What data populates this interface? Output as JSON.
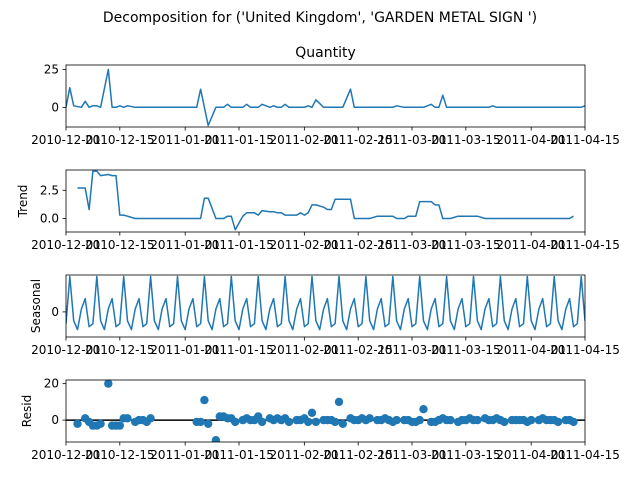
{
  "figure_title": "Decomposition for ('United Kingdom', 'GARDEN METAL SIGN ')",
  "x_tick_labels": [
    "2010-12-01",
    "2010-12-15",
    "2011-01-01",
    "2011-01-15",
    "2011-02-01",
    "2011-02-15",
    "2011-03-01",
    "2011-03-15",
    "2011-04-01",
    "2011-04-15"
  ],
  "line_color": "#1f77b4",
  "chart_data": [
    {
      "type": "line",
      "title": "Quantity",
      "ylabel": "",
      "xlim": [
        "2010-12-01",
        "2011-04-15"
      ],
      "ylim": [
        -13,
        28
      ],
      "yticks": [
        0,
        25
      ],
      "grid": false,
      "series": [
        {
          "x": [
            "2010-12-01",
            "2010-12-02",
            "2010-12-03",
            "2010-12-05",
            "2010-12-06",
            "2010-12-07",
            "2010-12-08",
            "2010-12-09",
            "2010-12-10",
            "2010-12-12",
            "2010-12-13",
            "2010-12-14",
            "2010-12-15",
            "2010-12-16",
            "2010-12-17",
            "2010-12-19",
            "2010-12-20",
            "2010-12-21",
            "2010-12-22",
            "2010-12-23",
            "2011-01-04",
            "2011-01-05",
            "2011-01-06",
            "2011-01-07",
            "2011-01-09",
            "2011-01-10",
            "2011-01-11",
            "2011-01-12",
            "2011-01-13",
            "2011-01-14",
            "2011-01-16",
            "2011-01-17",
            "2011-01-18",
            "2011-01-19",
            "2011-01-20",
            "2011-01-21",
            "2011-01-23",
            "2011-01-24",
            "2011-01-25",
            "2011-01-26",
            "2011-01-27",
            "2011-01-28",
            "2011-01-30",
            "2011-01-31",
            "2011-02-01",
            "2011-02-02",
            "2011-02-03",
            "2011-02-04",
            "2011-02-06",
            "2011-02-07",
            "2011-02-08",
            "2011-02-09",
            "2011-02-10",
            "2011-02-11",
            "2011-02-13",
            "2011-02-14",
            "2011-02-15",
            "2011-02-16",
            "2011-02-17",
            "2011-02-18",
            "2011-02-20",
            "2011-02-21",
            "2011-02-22",
            "2011-02-23",
            "2011-02-24",
            "2011-02-25",
            "2011-02-27",
            "2011-02-28",
            "2011-03-01",
            "2011-03-02",
            "2011-03-03",
            "2011-03-04",
            "2011-03-06",
            "2011-03-07",
            "2011-03-08",
            "2011-03-09",
            "2011-03-10",
            "2011-03-11",
            "2011-03-13",
            "2011-03-14",
            "2011-03-15",
            "2011-03-16",
            "2011-03-17",
            "2011-03-18",
            "2011-03-20",
            "2011-03-21",
            "2011-03-22",
            "2011-03-23",
            "2011-03-24",
            "2011-03-25",
            "2011-03-27",
            "2011-03-28",
            "2011-03-29",
            "2011-03-30",
            "2011-03-31",
            "2011-04-01",
            "2011-04-03",
            "2011-04-04",
            "2011-04-05",
            "2011-04-06",
            "2011-04-07",
            "2011-04-08",
            "2011-04-10",
            "2011-04-11",
            "2011-04-12",
            "2011-04-13",
            "2011-04-14",
            "2011-04-15"
          ],
          "y": [
            0,
            13,
            1,
            0,
            4,
            0,
            1,
            1,
            0,
            25,
            0,
            0,
            1,
            0,
            1,
            0,
            0,
            0,
            0,
            0,
            0,
            12,
            0,
            -12,
            0,
            0,
            0,
            2,
            0,
            0,
            0,
            2,
            0,
            0,
            0,
            2,
            0,
            1,
            0,
            0,
            2,
            0,
            0,
            0,
            0,
            1,
            0,
            5,
            0,
            0,
            0,
            0,
            0,
            0,
            12,
            0,
            0,
            0,
            0,
            0,
            0,
            0,
            0,
            0,
            0,
            1,
            0,
            0,
            0,
            0,
            0,
            0,
            2,
            0,
            0,
            8,
            0,
            0,
            0,
            0,
            0,
            0,
            0,
            0,
            0,
            0,
            1,
            0,
            0,
            0,
            0,
            0,
            0,
            0,
            0,
            0,
            0,
            0,
            0,
            0,
            0,
            0,
            0,
            0,
            0,
            0,
            0,
            1
          ]
        }
      ]
    },
    {
      "type": "line",
      "title": "",
      "ylabel": "Trend",
      "xlim": [
        "2010-12-01",
        "2011-04-15"
      ],
      "ylim": [
        -1.2,
        4.3
      ],
      "yticks": [
        0.0,
        2.5
      ],
      "grid": false,
      "series": [
        {
          "x": [
            "2010-12-04",
            "2010-12-06",
            "2010-12-07",
            "2010-12-08",
            "2010-12-09",
            "2010-12-10",
            "2010-12-12",
            "2010-12-13",
            "2010-12-14",
            "2010-12-15",
            "2010-12-16",
            "2010-12-17",
            "2010-12-19",
            "2010-12-20",
            "2010-12-21",
            "2010-12-22",
            "2010-12-23",
            "2011-01-04",
            "2011-01-05",
            "2011-01-06",
            "2011-01-07",
            "2011-01-09",
            "2011-01-10",
            "2011-01-11",
            "2011-01-12",
            "2011-01-13",
            "2011-01-14",
            "2011-01-16",
            "2011-01-17",
            "2011-01-18",
            "2011-01-19",
            "2011-01-20",
            "2011-01-21",
            "2011-01-23",
            "2011-01-24",
            "2011-01-25",
            "2011-01-26",
            "2011-01-27",
            "2011-01-28",
            "2011-01-30",
            "2011-01-31",
            "2011-02-01",
            "2011-02-02",
            "2011-02-03",
            "2011-02-04",
            "2011-02-06",
            "2011-02-07",
            "2011-02-08",
            "2011-02-09",
            "2011-02-10",
            "2011-02-11",
            "2011-02-13",
            "2011-02-14",
            "2011-02-15",
            "2011-02-16",
            "2011-02-17",
            "2011-02-18",
            "2011-02-20",
            "2011-02-21",
            "2011-02-22",
            "2011-02-23",
            "2011-02-24",
            "2011-02-25",
            "2011-02-27",
            "2011-02-28",
            "2011-03-01",
            "2011-03-02",
            "2011-03-03",
            "2011-03-04",
            "2011-03-06",
            "2011-03-07",
            "2011-03-08",
            "2011-03-09",
            "2011-03-10",
            "2011-03-11",
            "2011-03-13",
            "2011-03-14",
            "2011-03-15",
            "2011-03-16",
            "2011-03-17",
            "2011-03-18",
            "2011-03-20",
            "2011-03-21",
            "2011-03-22",
            "2011-03-23",
            "2011-03-24",
            "2011-03-25",
            "2011-03-27",
            "2011-03-28",
            "2011-03-29",
            "2011-03-30",
            "2011-03-31",
            "2011-04-01",
            "2011-04-03",
            "2011-04-04",
            "2011-04-05",
            "2011-04-06",
            "2011-04-07",
            "2011-04-08",
            "2011-04-10",
            "2011-04-11",
            "2011-04-12"
          ],
          "y": [
            2.7,
            2.7,
            0.8,
            4.2,
            4.2,
            3.8,
            3.9,
            3.8,
            3.8,
            0.3,
            0.3,
            0.2,
            0.0,
            0.0,
            0.0,
            0.0,
            0.0,
            0.0,
            0.0,
            1.8,
            1.8,
            0.0,
            0.0,
            0.0,
            0.2,
            0.2,
            -1.0,
            0.2,
            0.5,
            0.5,
            0.5,
            0.3,
            0.7,
            0.6,
            0.6,
            0.5,
            0.5,
            0.3,
            0.3,
            0.3,
            0.5,
            0.3,
            0.5,
            1.2,
            1.2,
            1.0,
            0.8,
            0.8,
            1.7,
            1.7,
            1.7,
            1.7,
            0.0,
            0.0,
            0.0,
            0.0,
            0.0,
            0.2,
            0.2,
            0.2,
            0.2,
            0.2,
            0.0,
            0.0,
            0.2,
            0.2,
            0.2,
            1.5,
            1.5,
            1.5,
            1.2,
            1.2,
            0.0,
            0.0,
            0.0,
            0.2,
            0.2,
            0.2,
            0.2,
            0.2,
            0.2,
            0.0,
            0.0,
            0.0,
            0.0,
            0.0,
            0.0,
            0.0,
            0.0,
            0.0,
            0.0,
            0.0,
            0.0,
            0.0,
            0.0,
            0.0,
            0.0,
            0.0,
            0.0,
            0.0,
            0.0,
            0.2
          ]
        }
      ]
    },
    {
      "type": "line",
      "title": "",
      "ylabel": "Seasonal",
      "xlim": [
        "2010-12-01",
        "2011-04-15"
      ],
      "ylim": [
        -0.85,
        1.25
      ],
      "yticks": [
        0
      ],
      "grid": false,
      "period_values": [
        -0.3,
        -0.6,
        0.1,
        0.45,
        -0.5,
        -0.4,
        1.2
      ],
      "period_phase_anchor": "2010-12-03",
      "series": [
        {
          "generated_from": "period_values",
          "x_start": "2010-12-01",
          "x_end": "2011-04-15"
        }
      ]
    },
    {
      "type": "scatter",
      "title": "",
      "ylabel": "Resid",
      "xlim": [
        "2010-12-01",
        "2011-04-15"
      ],
      "ylim": [
        -12,
        22
      ],
      "yticks": [
        0,
        20
      ],
      "grid": false,
      "zero_line": true,
      "series": [
        {
          "x": [
            "2010-12-04",
            "2010-12-06",
            "2010-12-07",
            "2010-12-08",
            "2010-12-09",
            "2010-12-10",
            "2010-12-12",
            "2010-12-13",
            "2010-12-14",
            "2010-12-15",
            "2010-12-16",
            "2010-12-17",
            "2010-12-19",
            "2010-12-20",
            "2010-12-21",
            "2010-12-22",
            "2010-12-23",
            "2011-01-04",
            "2011-01-05",
            "2011-01-06",
            "2011-01-07",
            "2011-01-09",
            "2011-01-10",
            "2011-01-11",
            "2011-01-12",
            "2011-01-13",
            "2011-01-14",
            "2011-01-16",
            "2011-01-17",
            "2011-01-18",
            "2011-01-19",
            "2011-01-20",
            "2011-01-21",
            "2011-01-23",
            "2011-01-24",
            "2011-01-25",
            "2011-01-26",
            "2011-01-27",
            "2011-01-28",
            "2011-01-30",
            "2011-01-31",
            "2011-02-01",
            "2011-02-02",
            "2011-02-03",
            "2011-02-04",
            "2011-02-06",
            "2011-02-07",
            "2011-02-08",
            "2011-02-09",
            "2011-02-10",
            "2011-02-11",
            "2011-02-13",
            "2011-02-14",
            "2011-02-15",
            "2011-02-16",
            "2011-02-17",
            "2011-02-18",
            "2011-02-20",
            "2011-02-21",
            "2011-02-22",
            "2011-02-23",
            "2011-02-24",
            "2011-02-25",
            "2011-02-27",
            "2011-02-28",
            "2011-03-01",
            "2011-03-02",
            "2011-03-03",
            "2011-03-04",
            "2011-03-06",
            "2011-03-07",
            "2011-03-08",
            "2011-03-09",
            "2011-03-10",
            "2011-03-11",
            "2011-03-13",
            "2011-03-14",
            "2011-03-15",
            "2011-03-16",
            "2011-03-17",
            "2011-03-18",
            "2011-03-20",
            "2011-03-21",
            "2011-03-22",
            "2011-03-23",
            "2011-03-24",
            "2011-03-25",
            "2011-03-27",
            "2011-03-28",
            "2011-03-29",
            "2011-03-30",
            "2011-03-31",
            "2011-04-01",
            "2011-04-03",
            "2011-04-04",
            "2011-04-05",
            "2011-04-06",
            "2011-04-07",
            "2011-04-08",
            "2011-04-10",
            "2011-04-11",
            "2011-04-12"
          ],
          "y": [
            -2,
            1,
            -1,
            -3,
            -3,
            -2,
            20,
            -3,
            -3,
            -3,
            1,
            1,
            -1,
            0,
            0,
            -1,
            1,
            -1,
            -1,
            11,
            -2,
            -11,
            2,
            2,
            1,
            1,
            -1,
            0,
            1,
            0,
            0,
            2,
            -1,
            1,
            0,
            1,
            0,
            1,
            -1,
            0,
            0,
            1,
            -1,
            4,
            -1,
            0,
            0,
            0,
            -1,
            10,
            -2,
            1,
            0,
            0,
            1,
            0,
            1,
            0,
            0,
            1,
            0,
            -1,
            0,
            0,
            0,
            -1,
            -1,
            0,
            6,
            -1,
            -1,
            0,
            1,
            0,
            0,
            -1,
            0,
            0,
            1,
            0,
            0,
            1,
            0,
            0,
            1,
            0,
            -1,
            0,
            0,
            0,
            0,
            -1,
            0,
            0,
            1,
            0,
            0,
            0,
            -1,
            0,
            0,
            -1
          ]
        }
      ]
    }
  ]
}
